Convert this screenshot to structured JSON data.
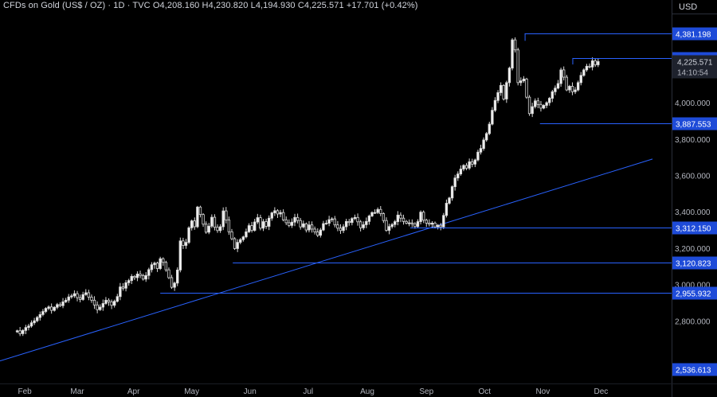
{
  "header": {
    "symbol": "CFDs on Gold (US$ / OZ) · 1D · TVC",
    "open_label": "O",
    "open": "4,208.160",
    "high_label": "H",
    "high": "4,230.820",
    "low_label": "L",
    "low": "4,194.930",
    "close_label": "C",
    "close": "4,225.571",
    "change": "+17.701 (+0.42%)"
  },
  "currency": "USD",
  "colors": {
    "background": "#000000",
    "candle": "#d9d9d9",
    "level_line": "#2962ff",
    "label_blue": "#1e4bd8",
    "axis_text": "#b2b5be"
  },
  "chart_data": {
    "type": "candlestick",
    "title": "CFDs on Gold (US$ / OZ) · 1D · TVC",
    "xlabel": "",
    "ylabel": "",
    "ylim": [
      2500,
      4420
    ],
    "y_ticks": [
      "2,800.000",
      "3,000.000",
      "3,200.000",
      "3,400.000",
      "3,600.000",
      "3,800.000",
      "4,000.000"
    ],
    "x_ticks": [
      "Feb",
      "Mar",
      "Apr",
      "May",
      "Jun",
      "Jul",
      "Aug",
      "Sep",
      "Oct",
      "Nov",
      "Dec"
    ],
    "x_tick_day": [
      1,
      28.5,
      58,
      88.5,
      119,
      149.5,
      180.5,
      211.5,
      242,
      272.5,
      303
    ],
    "day_range": [
      -12,
      340
    ],
    "last_price": "4,225.571",
    "countdown": "14:10:54",
    "levels": [
      {
        "price": 4381.198,
        "label": "4,381.198",
        "from_day": 263
      },
      {
        "price": 4245.427,
        "label": "4,245.427",
        "from_day": 288
      },
      {
        "price": 3887.553,
        "label": "3,887.553",
        "from_day": 271
      },
      {
        "price": 3312.15,
        "label": "3,312.150",
        "from_day": 203
      },
      {
        "price": 3120.823,
        "label": "3,120.823",
        "from_day": 110
      },
      {
        "price": 2955.932,
        "label": "2,955.932",
        "from_day": 72
      },
      {
        "price": 2536.613,
        "label": "2,536.613",
        "from_day": null
      }
    ],
    "trendline": {
      "from": [
        -12,
        2580
      ],
      "to": [
        330,
        3690
      ]
    },
    "closes": [
      2746,
      2730,
      2748,
      2764,
      2772,
      2790,
      2801,
      2819,
      2835,
      2852,
      2869,
      2877,
      2858,
      2875,
      2890,
      2884,
      2905,
      2914,
      2932,
      2938,
      2950,
      2928,
      2918,
      2945,
      2955,
      2931,
      2914,
      2888,
      2862,
      2876,
      2896,
      2914,
      2905,
      2886,
      2908,
      2934,
      2987,
      2980,
      3010,
      3022,
      3045,
      3038,
      3058,
      3049,
      3030,
      3050,
      3082,
      3109,
      3118,
      3088,
      3142,
      3122,
      3081,
      3038,
      2985,
      3008,
      3080,
      3240,
      3215,
      3232,
      3312,
      3350,
      3318,
      3426,
      3385,
      3332,
      3288,
      3321,
      3370,
      3315,
      3297,
      3318,
      3405,
      3355,
      3290,
      3252,
      3198,
      3232,
      3247,
      3262,
      3290,
      3324,
      3298,
      3344,
      3368,
      3310,
      3346,
      3320,
      3365,
      3394,
      3406,
      3388,
      3396,
      3356,
      3340,
      3325,
      3343,
      3369,
      3352,
      3317,
      3334,
      3300,
      3328,
      3305,
      3289,
      3271,
      3300,
      3335,
      3337,
      3357,
      3361,
      3328,
      3310,
      3297,
      3318,
      3347,
      3341,
      3363,
      3369,
      3345,
      3312,
      3329,
      3347,
      3377,
      3396,
      3396,
      3413,
      3390,
      3352,
      3298,
      3319,
      3330,
      3346,
      3382,
      3365,
      3347,
      3337,
      3339,
      3334,
      3319,
      3346,
      3398,
      3354,
      3338,
      3332,
      3338,
      3317,
      3326,
      3317,
      3380,
      3447,
      3476,
      3538,
      3586,
      3608,
      3635,
      3655,
      3640,
      3675,
      3662,
      3685,
      3728,
      3748,
      3795,
      3830,
      3882,
      3958,
      4012,
      4055,
      4095,
      4020,
      4110,
      4190,
      4345,
      4290,
      4110,
      4120,
      4130,
      4030,
      3940,
      3978,
      4010,
      3990,
      3970,
      3985,
      4000,
      4024,
      4060,
      4080,
      4105,
      4180,
      4140,
      4070,
      4090,
      4060,
      4070,
      4110,
      4150,
      4180,
      4200,
      4196,
      4230,
      4208,
      4226
    ]
  }
}
